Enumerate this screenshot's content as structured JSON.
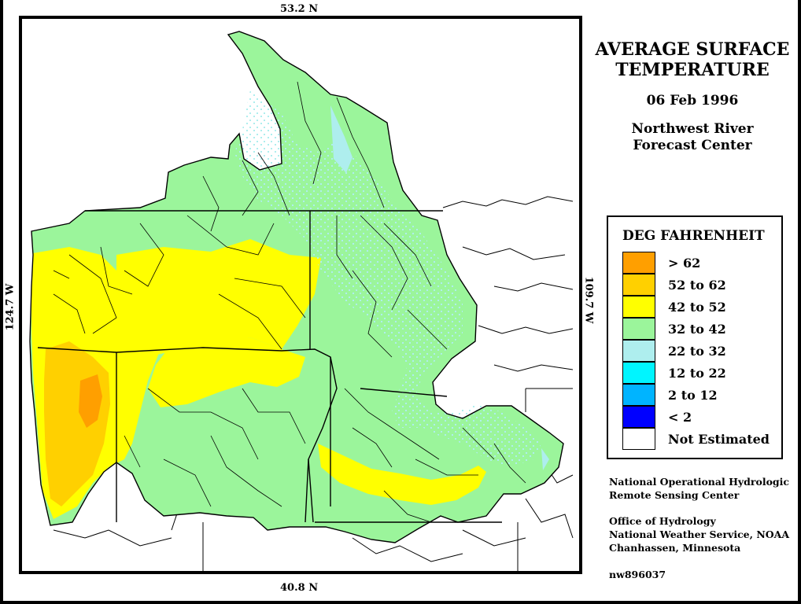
{
  "coords": {
    "north": "53.2 N",
    "south": "40.8 N",
    "west": "124.7 W",
    "east": "109.7 W"
  },
  "title": {
    "line1": "AVERAGE SURFACE",
    "line2": "TEMPERATURE",
    "date": "06 Feb 1996",
    "org1": "Northwest River",
    "org2": "Forecast Center"
  },
  "legend": {
    "heading": "DEG FAHRENHEIT",
    "items": [
      {
        "label": "> 62",
        "color": "#ff9f00"
      },
      {
        "label": "52 to 62",
        "color": "#ffd000"
      },
      {
        "label": "42 to 52",
        "color": "#ffff00"
      },
      {
        "label": "32 to 42",
        "color": "#9bf59b"
      },
      {
        "label": "22 to 32",
        "color": "#aeeeee"
      },
      {
        "label": "12 to 22",
        "color": "#00f5ff"
      },
      {
        "label": "2 to 12",
        "color": "#00b4ff"
      },
      {
        "label": "< 2",
        "color": "#0000ff"
      },
      {
        "label": "Not Estimated",
        "color": "#ffffff"
      }
    ]
  },
  "credits": {
    "line1": "National Operational Hydrologic",
    "line2": "Remote Sensing Center",
    "line3": "Office of Hydrology",
    "line4": "National Weather Service, NOAA",
    "line5": "Chanhassen, Minnesota",
    "id": "nw896037"
  }
}
